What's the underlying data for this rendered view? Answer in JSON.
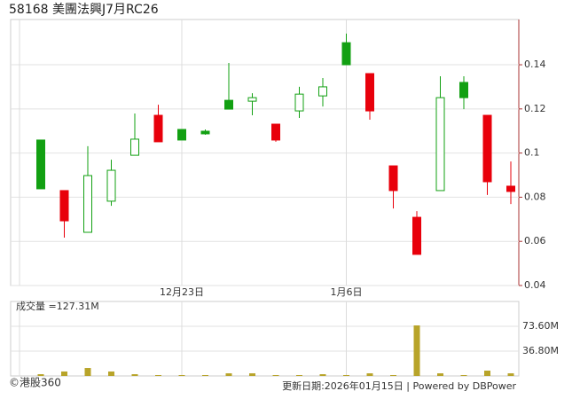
{
  "chart_data": {
    "type": "candlestick",
    "title": "58168 美團法興J7月RC26",
    "categories": [
      null,
      null,
      null,
      null,
      null,
      null,
      "12月23日",
      null,
      null,
      null,
      null,
      null,
      null,
      "1月6日",
      null,
      null,
      null,
      null,
      null,
      null,
      null
    ],
    "open": [
      0.0838,
      0.083,
      0.0641,
      0.0782,
      0.099,
      0.1171,
      0.1059,
      0.1087,
      0.1199,
      0.1235,
      0.1131,
      0.1191,
      0.1259,
      0.14,
      0.136,
      0.0942,
      0.0709,
      0.083,
      0.1251,
      0.1171,
      0.085
    ],
    "high": [
      0.1059,
      0.083,
      0.1031,
      0.097,
      0.1179,
      0.1219,
      0.1107,
      0.1107,
      0.1408,
      0.1271,
      0.1131,
      0.13,
      0.134,
      0.1541,
      0.136,
      0.0942,
      0.0737,
      0.1348,
      0.1348,
      0.1171,
      0.0962
    ],
    "low": [
      0.0838,
      0.0617,
      0.0641,
      0.0761,
      0.099,
      0.1051,
      0.1059,
      0.1083,
      0.1199,
      0.1171,
      0.1051,
      0.1159,
      0.1211,
      0.14,
      0.1151,
      0.0749,
      0.0541,
      0.083,
      0.1199,
      0.081,
      0.0769
    ],
    "close": [
      0.1059,
      0.0693,
      0.0898,
      0.0922,
      0.1063,
      0.1051,
      0.1107,
      0.1099,
      0.1239,
      0.1251,
      0.1059,
      0.1267,
      0.13,
      0.15,
      0.1191,
      0.083,
      0.0541,
      0.1251,
      0.132,
      0.087,
      0.0826
    ],
    "colors": [
      "#12a012",
      "#e8000b",
      "#12a012",
      "#12a012",
      "#12a012",
      "#e8000b",
      "#12a012",
      "#12a012",
      "#12a012",
      "#12a012",
      "#e8000b",
      "#12a012",
      "#12a012",
      "#12a012",
      "#e8000b",
      "#e8000b",
      "#e8000b",
      "#12a012",
      "#12a012",
      "#e8000b",
      "#e8000b"
    ],
    "hollow": [
      false,
      false,
      true,
      true,
      true,
      false,
      false,
      false,
      false,
      true,
      false,
      true,
      true,
      false,
      false,
      false,
      false,
      true,
      false,
      false,
      false
    ],
    "ylim": [
      0.04,
      0.1605
    ],
    "yticks": [
      0.04,
      0.06,
      0.08,
      0.1,
      0.12,
      0.14
    ],
    "grid": true,
    "volume_label": "成交量 =127.31M",
    "volume": [
      2.6,
      6.6,
      11.8,
      6.6,
      2.6,
      1.3,
      1.3,
      1.3,
      3.9,
      3.9,
      1.3,
      1.3,
      2.6,
      1.3,
      3.9,
      1.3,
      74.9,
      3.9,
      1.3,
      7.9,
      3.9
    ],
    "volume_color": "#b8a42a",
    "volume_ylim": [
      0,
      110.4
    ],
    "volume_yticks": [
      {
        "value": 36.8,
        "label": "36.80M"
      },
      {
        "value": 73.6,
        "label": "73.60M"
      }
    ],
    "source": "©港股360",
    "footer": "更新日期:2026年01月15日 | Powered by DBPower"
  }
}
